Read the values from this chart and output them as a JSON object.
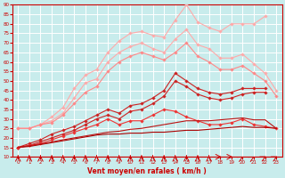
{
  "xlabel": "Vent moyen/en rafales ( km/h )",
  "background_color": "#c8ecec",
  "grid_color": "#ffffff",
  "x": [
    0,
    1,
    2,
    3,
    4,
    5,
    6,
    7,
    8,
    9,
    10,
    11,
    12,
    13,
    14,
    15,
    16,
    17,
    18,
    19,
    20,
    21,
    22,
    23
  ],
  "ylim": [
    10,
    90
  ],
  "xlim": [
    -0.5,
    23.5
  ],
  "series": [
    {
      "color": "#ffaaaa",
      "linewidth": 0.8,
      "marker": "D",
      "markersize": 1.8,
      "data": [
        25,
        25,
        27,
        31,
        36,
        46,
        53,
        56,
        65,
        71,
        75,
        76,
        74,
        73,
        82,
        90,
        81,
        78,
        76,
        80,
        80,
        80,
        84,
        null
      ]
    },
    {
      "color": "#ffaaaa",
      "linewidth": 0.8,
      "marker": "D",
      "markersize": 1.8,
      "data": [
        25,
        25,
        27,
        29,
        33,
        41,
        49,
        51,
        60,
        65,
        68,
        70,
        67,
        65,
        72,
        77,
        69,
        67,
        62,
        62,
        64,
        59,
        54,
        45
      ]
    },
    {
      "color": "#ff8888",
      "linewidth": 0.8,
      "marker": "D",
      "markersize": 1.8,
      "data": [
        25,
        25,
        27,
        28,
        32,
        38,
        44,
        47,
        55,
        60,
        63,
        65,
        63,
        61,
        65,
        70,
        63,
        60,
        56,
        56,
        58,
        54,
        50,
        42
      ]
    },
    {
      "color": "#cc2222",
      "linewidth": 0.8,
      "marker": "D",
      "markersize": 1.8,
      "data": [
        15,
        17,
        19,
        22,
        24,
        26,
        29,
        32,
        35,
        33,
        37,
        38,
        41,
        45,
        54,
        50,
        46,
        44,
        43,
        44,
        46,
        46,
        46,
        null
      ]
    },
    {
      "color": "#cc2222",
      "linewidth": 0.8,
      "marker": "D",
      "markersize": 1.8,
      "data": [
        15,
        16,
        18,
        20,
        22,
        24,
        27,
        30,
        32,
        30,
        34,
        35,
        38,
        42,
        50,
        47,
        43,
        41,
        40,
        41,
        43,
        44,
        44,
        null
      ]
    },
    {
      "color": "#ee3333",
      "linewidth": 0.8,
      "marker": "D",
      "markersize": 1.8,
      "data": [
        15,
        16,
        17,
        19,
        21,
        23,
        25,
        27,
        30,
        27,
        29,
        29,
        32,
        35,
        34,
        31,
        29,
        27,
        27,
        28,
        30,
        27,
        26,
        25
      ]
    },
    {
      "color": "#aa0000",
      "linewidth": 0.8,
      "marker": null,
      "markersize": 0,
      "data": [
        15,
        15.5,
        16.5,
        17.5,
        18.5,
        19.5,
        20.5,
        21.5,
        22,
        22,
        22.5,
        22.5,
        23,
        23,
        23.5,
        24,
        24,
        24.5,
        25,
        25.5,
        26,
        25.5,
        25.5,
        25
      ]
    },
    {
      "color": "#bb1111",
      "linewidth": 0.8,
      "marker": null,
      "markersize": 0,
      "data": [
        15,
        15.8,
        16.8,
        17.8,
        19,
        20,
        21,
        22,
        23,
        23.5,
        24.5,
        25,
        26,
        27,
        28,
        29,
        29,
        29,
        29.5,
        30,
        30.5,
        29.5,
        29.5,
        25
      ]
    }
  ],
  "arrow_color": "#cc0000",
  "spine_color": "#cc0000",
  "tick_color": "#cc0000",
  "xlabel_color": "#cc0000",
  "xlabel_fontsize": 5.5,
  "tick_fontsize": 4.0
}
